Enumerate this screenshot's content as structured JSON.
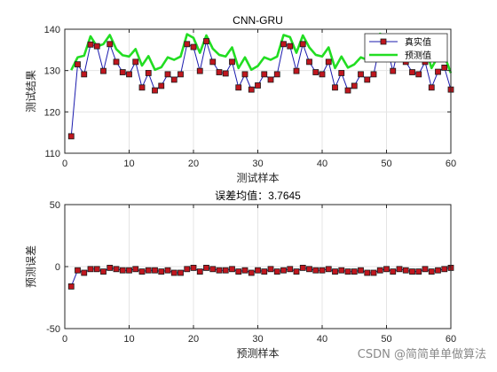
{
  "chart_data": [
    {
      "type": "line",
      "title": "CNN-GRU",
      "xlabel": "测试样本",
      "ylabel": "测试结果",
      "xlim": [
        0,
        60
      ],
      "ylim": [
        110,
        140
      ],
      "xticks": [
        "0",
        "10",
        "20",
        "30",
        "40",
        "50",
        "60"
      ],
      "yticks": [
        "110",
        "120",
        "130",
        "140"
      ],
      "grid": true,
      "legend_position": "top-right",
      "series": [
        {
          "name": "真实值",
          "color": "#1a1aad",
          "marker": "square",
          "marker_fill": "#c0161e",
          "x": [
            1,
            2,
            3,
            4,
            5,
            6,
            7,
            8,
            9,
            10,
            11,
            12,
            13,
            14,
            15,
            16,
            17,
            18,
            19,
            20,
            21,
            22,
            23,
            24,
            25,
            26,
            27,
            28,
            29,
            30,
            31,
            32,
            33,
            34,
            35,
            36,
            37,
            38,
            39,
            40,
            41,
            42,
            43,
            44,
            45,
            46,
            47,
            48,
            49,
            50,
            51,
            52,
            53,
            54,
            55,
            56,
            57,
            58,
            59,
            60
          ],
          "values": [
            114.1,
            131.5,
            129.1,
            136.3,
            135.9,
            129.9,
            136.4,
            132.1,
            129.6,
            129.1,
            132.1,
            125.9,
            129.4,
            125.2,
            126.3,
            129.1,
            127.8,
            129.1,
            136.4,
            135.7,
            129.9,
            137.1,
            132.1,
            129.6,
            129.3,
            132.1,
            125.9,
            129.1,
            125.4,
            126.4,
            129.1,
            127.8,
            129.1,
            136.4,
            135.9,
            129.9,
            136.4,
            132.1,
            129.6,
            129.1,
            132.1,
            125.9,
            129.4,
            125.2,
            126.3,
            129.1,
            127.8,
            129.1,
            136.4,
            135.9,
            129.9,
            136.4,
            132.1,
            129.6,
            129.1,
            132.1,
            125.9,
            129.7,
            130.7,
            125.4
          ]
        },
        {
          "name": "预测值",
          "color": "#22dd22",
          "x": [
            1,
            2,
            3,
            4,
            5,
            6,
            7,
            8,
            9,
            10,
            11,
            12,
            13,
            14,
            15,
            16,
            17,
            18,
            19,
            20,
            21,
            22,
            23,
            24,
            25,
            26,
            27,
            28,
            29,
            30,
            31,
            32,
            33,
            34,
            35,
            36,
            37,
            38,
            39,
            40,
            41,
            42,
            43,
            44,
            45,
            46,
            47,
            48,
            49,
            50,
            51,
            52,
            53,
            54,
            55,
            56,
            57,
            58,
            59,
            60
          ],
          "values": [
            130.1,
            133.2,
            133.6,
            138.3,
            135.8,
            136.4,
            138.6,
            135.2,
            133.7,
            133.4,
            135.2,
            131.2,
            133.5,
            130.2,
            130.8,
            133.2,
            132.6,
            133.4,
            138.8,
            137.9,
            134.3,
            138.5,
            135.3,
            133.8,
            133.4,
            135.6,
            130.6,
            133.2,
            130.2,
            131.1,
            133.2,
            132.6,
            133.4,
            138.6,
            138.1,
            134.3,
            138.5,
            135.6,
            133.8,
            133.4,
            135.6,
            130.6,
            133.4,
            130.7,
            131.5,
            133.2,
            132.6,
            133.4,
            138.9,
            138.2,
            134.3,
            138.5,
            135.6,
            133.8,
            133.4,
            135.6,
            130.6,
            133.4,
            133.6,
            129.4
          ]
        }
      ]
    },
    {
      "type": "line",
      "title": "误差均值：3.7645",
      "xlabel": "预测样本",
      "ylabel": "预测误差",
      "xlim": [
        0,
        60
      ],
      "ylim": [
        -50,
        50
      ],
      "xticks": [
        "0",
        "10",
        "20",
        "30",
        "40",
        "50",
        "60"
      ],
      "yticks": [
        "-50",
        "0",
        "50"
      ],
      "grid": true,
      "series": [
        {
          "color": "#1a1aad",
          "marker": "square",
          "marker_fill": "#c0161e",
          "x": [
            1,
            2,
            3,
            4,
            5,
            6,
            7,
            8,
            9,
            10,
            11,
            12,
            13,
            14,
            15,
            16,
            17,
            18,
            19,
            20,
            21,
            22,
            23,
            24,
            25,
            26,
            27,
            28,
            29,
            30,
            31,
            32,
            33,
            34,
            35,
            36,
            37,
            38,
            39,
            40,
            41,
            42,
            43,
            44,
            45,
            46,
            47,
            48,
            49,
            50,
            51,
            52,
            53,
            54,
            55,
            56,
            57,
            58,
            59,
            60
          ],
          "values": [
            -16,
            -3,
            -5,
            -2,
            -2,
            -4,
            -1,
            -2,
            -3,
            -3,
            -2,
            -4,
            -3,
            -3,
            -4,
            -3,
            -5,
            -5,
            -2,
            -1,
            -4,
            -1,
            -2,
            -3,
            -3,
            -2,
            -4,
            -3,
            -5,
            -3,
            -4,
            -2,
            -4,
            -3,
            -2,
            -4,
            -1,
            -2,
            -3,
            -3,
            -2,
            -4,
            -3,
            -4,
            -4,
            -3,
            -5,
            -5,
            -3,
            -2,
            -4,
            -2,
            -3,
            -4,
            -4,
            -2,
            -4,
            -3,
            -2,
            -1
          ]
        }
      ]
    }
  ],
  "watermark": "CSDN @简简单单做算法"
}
